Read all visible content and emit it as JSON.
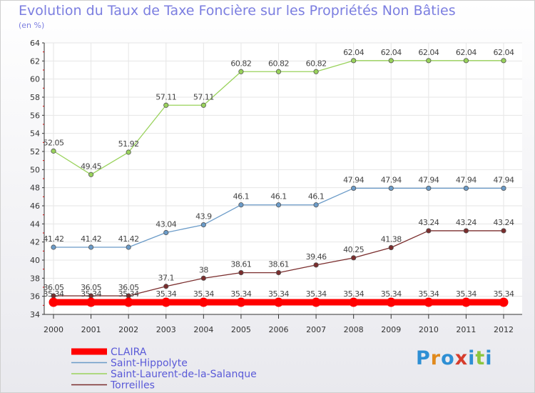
{
  "header": {
    "title": "Evolution du Taux de Taxe Foncière sur les Propriétés Non Bâties",
    "subtitle": "(en %)"
  },
  "logo": {
    "text": "Proxiti",
    "colors": [
      "#2e8fd4",
      "#e08a1e",
      "#2e8fd4",
      "#d63c2c",
      "#2e8fd4",
      "#8cc63f",
      "#2e8fd4"
    ]
  },
  "chart_data": {
    "type": "line",
    "x": [
      "2000",
      "2001",
      "2002",
      "2003",
      "2004",
      "2005",
      "2006",
      "2007",
      "2008",
      "2009",
      "2010",
      "2011",
      "2012"
    ],
    "ylim": [
      34,
      64
    ],
    "yticks": [
      34,
      36,
      38,
      40,
      42,
      44,
      46,
      48,
      50,
      52,
      54,
      56,
      58,
      60,
      62,
      64
    ],
    "ytick_labels": [
      "34",
      "36",
      "38",
      "40",
      "42",
      "44",
      "46",
      "48",
      "50",
      "52",
      "54",
      "56",
      "58",
      "60",
      "62",
      "64"
    ],
    "legend_position": "bottom-left",
    "series": [
      {
        "name": "CLAIRA",
        "color": "#ff0000",
        "values": [
          35.34,
          35.34,
          35.34,
          35.34,
          35.34,
          35.34,
          35.34,
          35.34,
          35.34,
          35.34,
          35.34,
          35.34,
          35.34
        ],
        "labels": [
          "35.34",
          "35.34",
          "35.34",
          "35.34",
          "35.34",
          "35.34",
          "35.34",
          "35.34",
          "35.34",
          "35.34",
          "35.34",
          "35.34",
          "35.34"
        ]
      },
      {
        "name": "Saint-Hippolyte",
        "color": "#6b9bc8",
        "values": [
          41.42,
          41.42,
          41.42,
          43.04,
          43.9,
          46.1,
          46.1,
          46.1,
          47.94,
          47.94,
          47.94,
          47.94,
          47.94
        ],
        "labels": [
          "41.42",
          "41.42",
          "41.42",
          "43.04",
          "43.9",
          "46.1",
          "46.1",
          "46.1",
          "47.94",
          "47.94",
          "47.94",
          "47.94",
          "47.94"
        ]
      },
      {
        "name": "Saint-Laurent-de-la-Salanque",
        "color": "#99d25b",
        "values": [
          52.05,
          49.45,
          51.92,
          57.11,
          57.11,
          60.82,
          60.82,
          60.82,
          62.04,
          62.04,
          62.04,
          62.04,
          62.04
        ],
        "labels": [
          "52.05",
          "49.45",
          "51.92",
          "57.11",
          "57.11",
          "60.82",
          "60.82",
          "60.82",
          "62.04",
          "62.04",
          "62.04",
          "62.04",
          "62.04"
        ]
      },
      {
        "name": "Torreilles",
        "color": "#7a2d2d",
        "values": [
          36.05,
          36.05,
          36.05,
          37.1,
          38,
          38.61,
          38.61,
          39.46,
          40.25,
          41.38,
          43.24,
          43.24,
          43.24
        ],
        "labels": [
          "36.05",
          "36.05",
          "36.05",
          "37.1",
          "38",
          "38.61",
          "38.61",
          "39.46",
          "40.25",
          "41.38",
          "43.24",
          "43.24",
          "43.24"
        ]
      }
    ]
  }
}
